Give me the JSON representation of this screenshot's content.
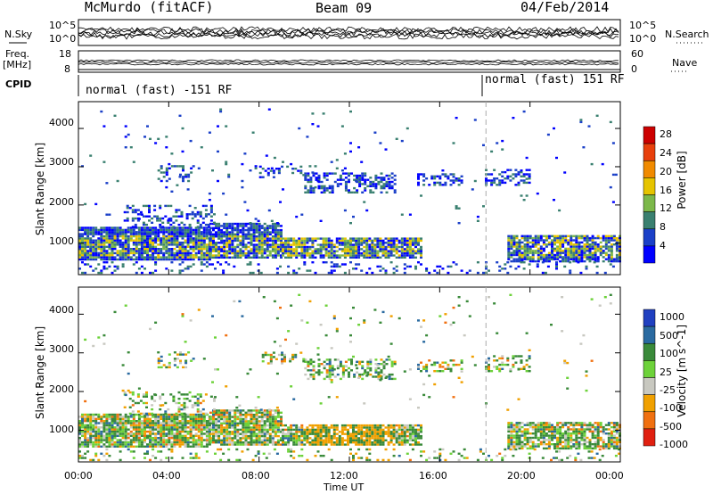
{
  "header": {
    "title": "McMurdo (fitACF)",
    "beam": "Beam 09",
    "date": "04/Feb/2014"
  },
  "top_panels": {
    "nsky_label": "N.Sky",
    "nsearch_label": "N.Search",
    "nsky_ticks": [
      "10^5",
      "10^0"
    ],
    "freq_label_1": "Freq.",
    "freq_label_2": "[MHz]",
    "freq_ticks": [
      "18",
      "8"
    ],
    "nave_label": "Nave",
    "nave_ticks": [
      "60",
      "0"
    ],
    "cpid_label": "CPID",
    "cpid_left": "normal (fast) -151 RF",
    "cpid_right": "normal (fast) 151 RF"
  },
  "chart_data": [
    {
      "type": "heatmap",
      "panel": "power",
      "ylabel": "Slant Range [km]",
      "yticks": [
        1000,
        2000,
        3000,
        4000
      ],
      "xticks": [
        "00:00",
        "04:00",
        "08:00",
        "12:00",
        "16:00",
        "20:00",
        "00:00"
      ],
      "xlim": [
        0,
        24
      ],
      "ylim": [
        180,
        4700
      ],
      "colorbar_label": "Power [dB]",
      "colorbar_ticks": [
        4,
        8,
        12,
        16,
        20,
        24,
        28
      ],
      "colors": [
        "#0000ff",
        "#1b40c8",
        "#3a8070",
        "#7cb84a",
        "#e6c400",
        "#f08a00",
        "#e8400c",
        "#cc0000"
      ]
    },
    {
      "type": "heatmap",
      "panel": "velocity",
      "ylabel": "Slant Range [km]",
      "yticks": [
        1000,
        2000,
        3000,
        4000
      ],
      "xticks": [
        "00:00",
        "04:00",
        "08:00",
        "12:00",
        "16:00",
        "20:00",
        "00:00"
      ],
      "xlabel": "Time UT",
      "xlim": [
        0,
        24
      ],
      "ylim": [
        180,
        4700
      ],
      "colorbar_label": "Velocity [m s^-1]",
      "colorbar_ticks": [
        1000,
        500,
        100,
        25,
        -25,
        -100,
        -500,
        -1000
      ],
      "colors": [
        "#2040c0",
        "#2a6aa0",
        "#3a8a3a",
        "#6dd23a",
        "#c8c8c0",
        "#f0a000",
        "#f07010",
        "#e02010"
      ]
    }
  ]
}
